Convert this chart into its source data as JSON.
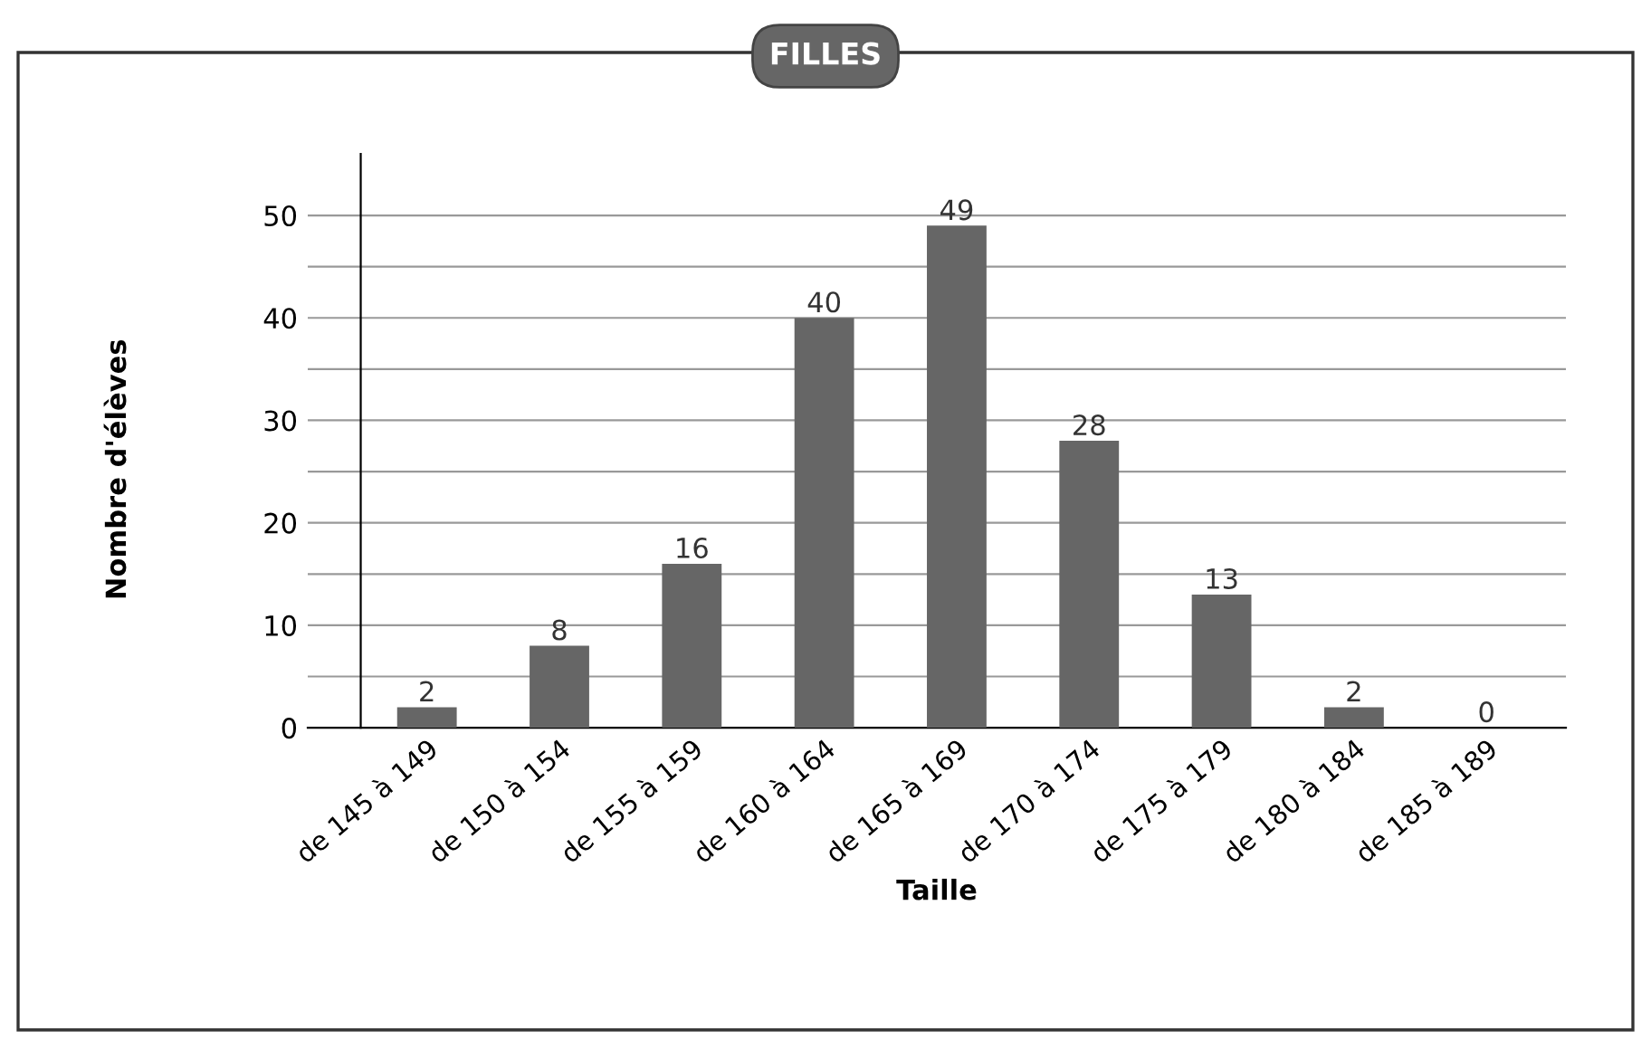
{
  "chart_data": {
    "type": "bar",
    "title": "FILLES",
    "xlabel": "Taille",
    "ylabel": "Nombre d'élèves",
    "categories": [
      "de 145 à 149",
      "de 150 à 154",
      "de 155 à 159",
      "de 160 à 164",
      "de 165 à 169",
      "de 170 à 174",
      "de 175 à 179",
      "de 180 à 184",
      "de 185 à 189"
    ],
    "values": [
      2,
      8,
      16,
      40,
      49,
      28,
      13,
      2,
      0
    ],
    "color": "#666666",
    "ylim": [
      0,
      56
    ],
    "yticks": [
      0,
      {
        "value": 5,
        "label": null
      },
      10,
      {
        "value": 15,
        "label": null
      },
      20,
      {
        "value": 25,
        "label": null
      },
      30,
      {
        "value": 35,
        "label": null
      },
      40,
      {
        "value": 45,
        "label": null
      },
      50
    ],
    "grid": "y",
    "data_labels": true
  }
}
